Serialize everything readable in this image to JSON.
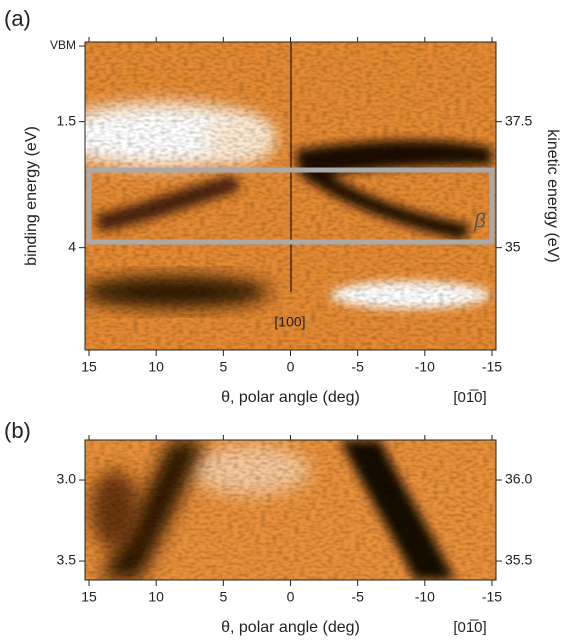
{
  "chart_data": [
    {
      "type": "image",
      "panel": "(a)",
      "xlabel": "θ, polar angle (deg)",
      "ylabel": "binding energy (eV)",
      "y2label": "kinetic energy (eV)",
      "xlim": [
        15.3,
        -15.3
      ],
      "xticks": [
        15,
        10,
        5,
        0,
        -5,
        -10,
        -15
      ],
      "ylim": [
        -0.08,
        6.03
      ],
      "yticks": [
        {
          "value": 0,
          "label": "VBM"
        },
        1.5,
        4
      ],
      "y2lim": [
        39.08,
        32.97
      ],
      "y2ticks": [
        37.5,
        35
      ],
      "annotations": [
        "[100]",
        "β",
        "[01̅0]"
      ]
    },
    {
      "type": "image",
      "panel": "(b)",
      "xlabel": "θ, polar angle (deg)",
      "xlim": [
        15.3,
        -15.3
      ],
      "xticks": [
        15,
        10,
        5,
        0,
        -5,
        -10,
        -15
      ],
      "ylim": [
        2.753,
        3.617
      ],
      "yticks": [
        {
          "value": 3,
          "label": "3.0"
        },
        3.5
      ],
      "y2lim": [
        36.247,
        35.383
      ],
      "y2ticks": [
        {
          "value": 36,
          "label": "36.0"
        },
        35.5
      ],
      "annotations": [
        "[01̅0]"
      ]
    }
  ]
}
